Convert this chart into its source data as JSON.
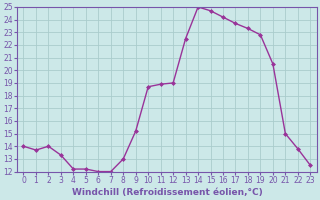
{
  "x": [
    0,
    1,
    2,
    3,
    4,
    5,
    6,
    7,
    8,
    9,
    10,
    11,
    12,
    13,
    14,
    15,
    16,
    17,
    18,
    19,
    20,
    21,
    22,
    23
  ],
  "y": [
    14.0,
    13.7,
    14.0,
    13.3,
    12.2,
    12.2,
    12.0,
    12.0,
    13.0,
    15.2,
    18.7,
    18.9,
    19.0,
    22.5,
    25.0,
    24.7,
    24.2,
    23.7,
    23.3,
    22.8,
    20.5,
    15.0,
    13.8,
    12.5
  ],
  "line_color": "#993399",
  "marker": "D",
  "marker_size": 2.0,
  "bg_color": "#cce8e8",
  "grid_color": "#aacccc",
  "spine_color": "#7755aa",
  "xlabel": "Windchill (Refroidissement éolien,°C)",
  "ylim": [
    12,
    25
  ],
  "xlim": [
    -0.5,
    23.5
  ],
  "yticks": [
    12,
    13,
    14,
    15,
    16,
    17,
    18,
    19,
    20,
    21,
    22,
    23,
    24,
    25
  ],
  "xticks": [
    0,
    1,
    2,
    3,
    4,
    5,
    6,
    7,
    8,
    9,
    10,
    11,
    12,
    13,
    14,
    15,
    16,
    17,
    18,
    19,
    20,
    21,
    22,
    23
  ],
  "tick_fontsize": 5.5,
  "xlabel_fontsize": 6.5,
  "line_width": 1.0
}
